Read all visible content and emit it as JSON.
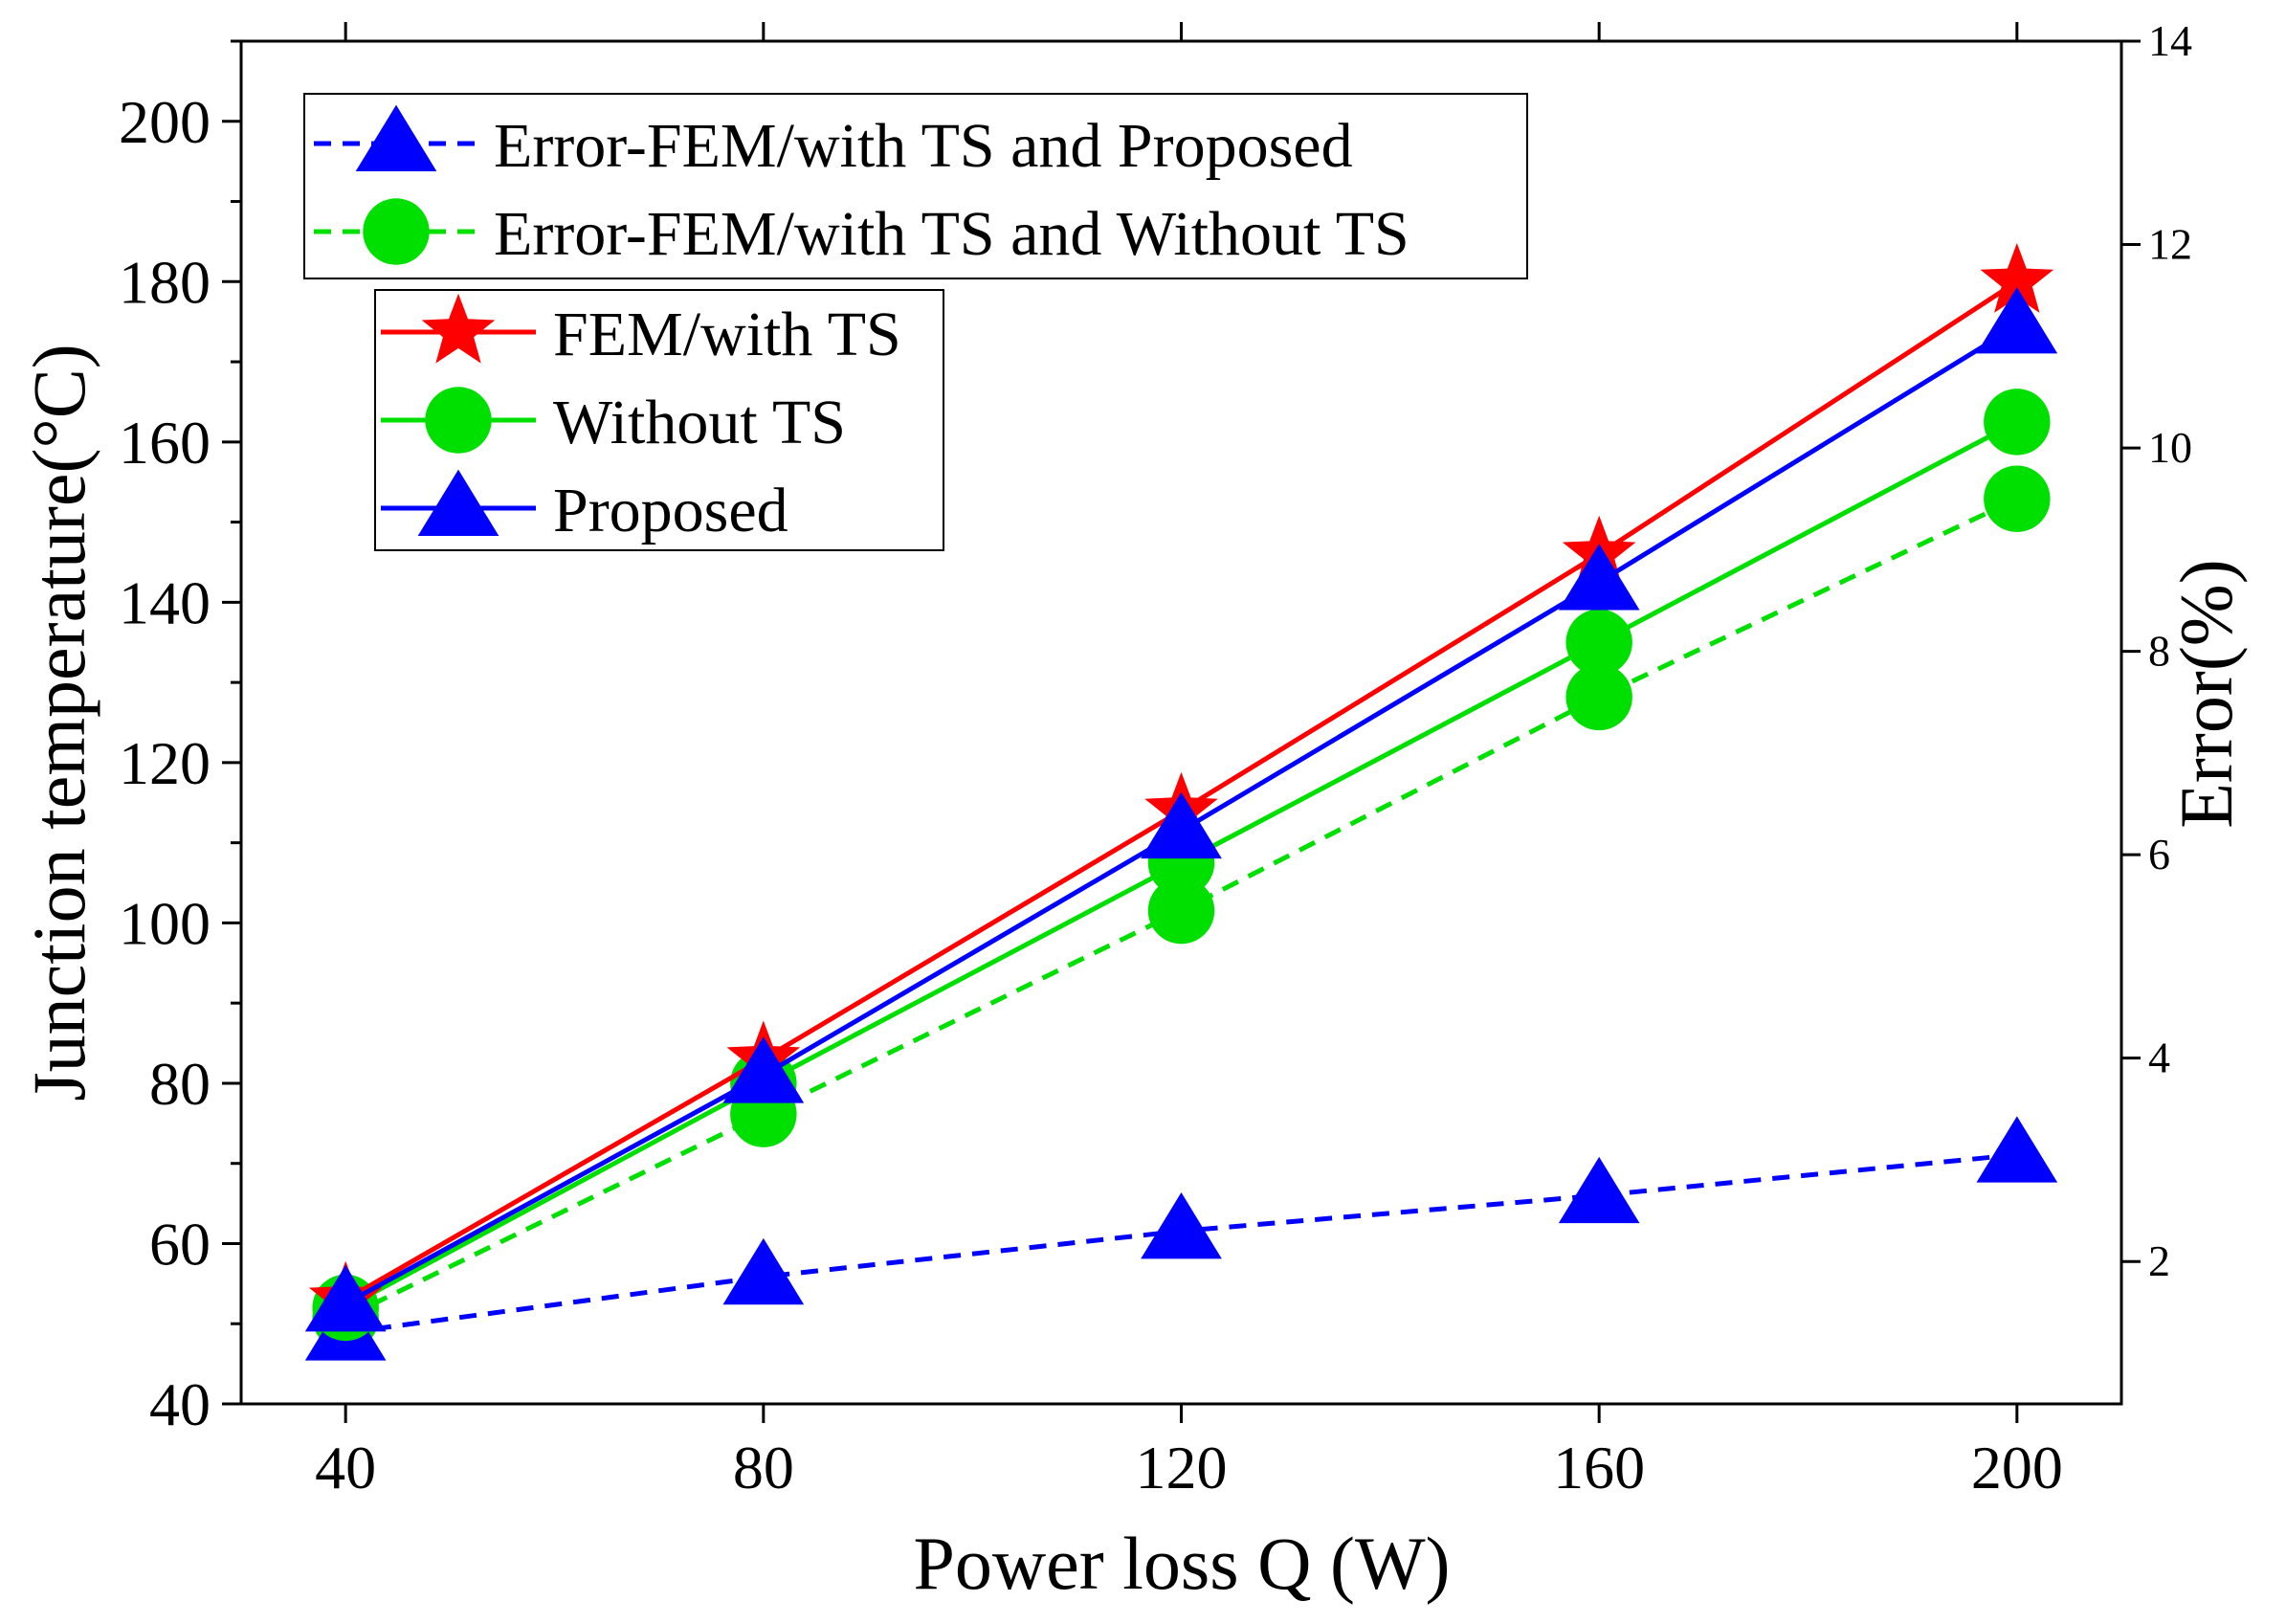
{
  "chart_data": {
    "type": "line",
    "x": [
      40,
      80,
      120,
      160,
      200
    ],
    "xlabel": "Power loss Q (W)",
    "ylabel": "Junction temperature(°C)",
    "y2label": "Error(%)",
    "xlim": [
      30,
      210
    ],
    "ylim": [
      40,
      210
    ],
    "y2lim": [
      0.6,
      14
    ],
    "x_ticks": [
      "40",
      "80",
      "120",
      "160",
      "200"
    ],
    "y_ticks": [
      "40",
      "60",
      "80",
      "100",
      "120",
      "140",
      "160",
      "180",
      "200"
    ],
    "y2_ticks": [
      "2",
      "4",
      "6",
      "8",
      "10",
      "12",
      "14"
    ],
    "legend_placement": "top-left",
    "series": [
      {
        "name": "FEM/with TS",
        "axis": "left",
        "color": "#ff0000",
        "marker": "star",
        "dash": "solid",
        "values": [
          53,
          83,
          114,
          146,
          180
        ]
      },
      {
        "name": "Without TS",
        "axis": "left",
        "color": "#00e000",
        "marker": "circle",
        "dash": "solid",
        "values": [
          52,
          80,
          107.5,
          135,
          162.5
        ]
      },
      {
        "name": "Proposed",
        "axis": "left",
        "color": "#0000ff",
        "marker": "triangle",
        "dash": "solid",
        "values": [
          52.5,
          81,
          111.5,
          142.5,
          174.5
        ]
      },
      {
        "name": "Error-FEM/with TS and Proposed",
        "axis": "right",
        "color": "#0000ff",
        "marker": "triangle",
        "dash": "dashed",
        "values": [
          1.3,
          1.85,
          2.3,
          2.65,
          3.05
        ]
      },
      {
        "name": "Error-FEM/with TS and Without TS",
        "axis": "right",
        "color": "#00e000",
        "marker": "circle",
        "dash": "dashed",
        "values": [
          1.45,
          3.45,
          5.45,
          7.55,
          9.5
        ]
      }
    ],
    "legends": [
      {
        "entries": [
          "Error-FEM/with TS and Proposed",
          "Error-FEM/with TS and Without TS"
        ]
      },
      {
        "entries": [
          "FEM/with TS",
          "Without TS",
          "Proposed"
        ]
      }
    ]
  }
}
